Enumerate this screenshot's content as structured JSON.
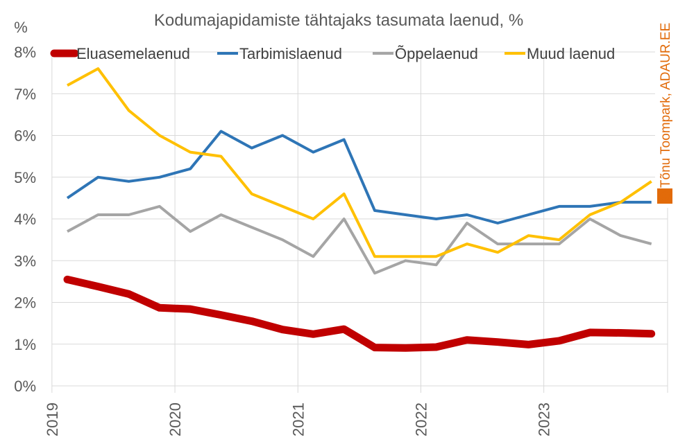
{
  "chart_data": {
    "type": "line",
    "title": "Kodumajapidamiste tähtajaks tasumata laenud, %",
    "ylabel": "%",
    "xlabel": "",
    "ylim": [
      0,
      8
    ],
    "yticks": [
      "0%",
      "1%",
      "2%",
      "3%",
      "4%",
      "5%",
      "6%",
      "7%",
      "8%"
    ],
    "xticks": [
      "2019",
      "2020",
      "2021",
      "2022",
      "2023"
    ],
    "x": [
      "2019 Q1",
      "2019 Q2",
      "2019 Q3",
      "2019 Q4",
      "2020 Q1",
      "2020 Q2",
      "2020 Q3",
      "2020 Q4",
      "2021 Q1",
      "2021 Q2",
      "2021 Q3",
      "2021 Q4",
      "2022 Q1",
      "2022 Q2",
      "2022 Q3",
      "2022 Q4",
      "2023 Q1",
      "2023 Q2",
      "2023 Q3",
      "2023 Q4"
    ],
    "grid": true,
    "legend_position": "top",
    "series": [
      {
        "name": "Eluasemelaenud",
        "color": "#c00000",
        "values": [
          2.55,
          2.38,
          2.2,
          1.87,
          1.84,
          1.7,
          1.55,
          1.35,
          1.24,
          1.36,
          0.92,
          0.91,
          0.93,
          1.1,
          1.05,
          0.99,
          1.08,
          1.28,
          1.27,
          1.25
        ]
      },
      {
        "name": "Tarbimislaenud",
        "color": "#2e75b6",
        "values": [
          4.5,
          5.0,
          4.9,
          5.0,
          5.2,
          6.1,
          5.7,
          6.0,
          5.6,
          5.9,
          4.2,
          4.1,
          4.0,
          4.1,
          3.9,
          4.1,
          4.3,
          4.3,
          4.4,
          4.4
        ]
      },
      {
        "name": "Õppelaenud",
        "color": "#a5a5a5",
        "values": [
          3.7,
          4.1,
          4.1,
          4.3,
          3.7,
          4.1,
          3.8,
          3.5,
          3.1,
          4.0,
          2.7,
          3.0,
          2.9,
          3.9,
          3.4,
          3.4,
          3.4,
          4.0,
          3.6,
          3.4
        ]
      },
      {
        "name": "Muud laenud",
        "color": "#ffc000",
        "values": [
          7.2,
          7.6,
          6.6,
          6.0,
          5.6,
          5.5,
          4.6,
          4.3,
          4.0,
          4.6,
          3.1,
          3.1,
          3.1,
          3.4,
          3.2,
          3.6,
          3.5,
          4.1,
          4.4,
          4.9
        ]
      }
    ],
    "copyright": "© Tõnu Toompark, ADAUR.EE"
  }
}
